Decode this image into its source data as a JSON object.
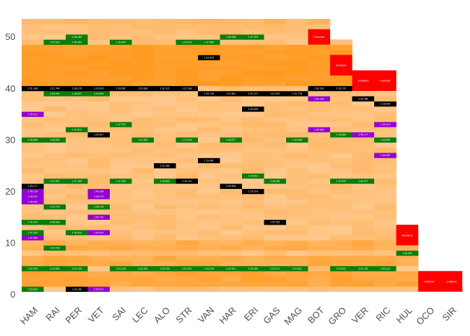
{
  "chart_data": {
    "type": "heatmap",
    "title": "",
    "xlabel": "",
    "ylabel": "",
    "categories": [
      "HAM",
      "RAI",
      "PER",
      "VET",
      "SAI",
      "LEC",
      "ALO",
      "STR",
      "VAN",
      "HAR",
      "ERI",
      "GAS",
      "MAG",
      "BOT",
      "GRO",
      "VER",
      "RIC",
      "HUL",
      "OCO",
      "SIR"
    ],
    "yticks": [
      0,
      10,
      20,
      30,
      40,
      50
    ],
    "ylim": [
      -0.5,
      53.5
    ],
    "laps_completed": [
      53,
      53,
      53,
      53,
      53,
      53,
      53,
      53,
      53,
      53,
      53,
      53,
      53,
      53,
      49,
      43,
      43,
      12,
      1,
      1
    ],
    "colors": {
      "fastest_lap": "#0a7d0a",
      "personal_best": "#9400d3",
      "pit_lap": "#000000",
      "event": "#ff0000",
      "heat_low": "#ffd3a6",
      "heat_high": "#ff9a1f",
      "missing": "#ffffff"
    },
    "pit_laps": [
      {
        "driver": "HAM",
        "lap": 40,
        "label": "1:21.339"
      },
      {
        "driver": "HAM",
        "lap": 21,
        "label": "1:25.177"
      },
      {
        "driver": "RAI",
        "lap": 40,
        "label": "1:21.749"
      },
      {
        "driver": "PER",
        "lap": 40,
        "label": "1:26.179"
      },
      {
        "driver": "PER",
        "lap": 1,
        "label": "1:26.180"
      },
      {
        "driver": "VET",
        "lap": 40,
        "label": "1:23.823"
      },
      {
        "driver": "VET",
        "lap": 31,
        "label": "1:25.927"
      },
      {
        "driver": "SAI",
        "lap": 40,
        "label": "1:20.567"
      },
      {
        "driver": "LEC",
        "lap": 40,
        "label": "1:22.830"
      },
      {
        "driver": "ALO",
        "lap": 40,
        "label": "1:21.371"
      },
      {
        "driver": "ALO",
        "lap": 25,
        "label": "1:21.051"
      },
      {
        "driver": "STR",
        "lap": 40,
        "label": "1:21.236"
      },
      {
        "driver": "STR",
        "lap": 22,
        "label": "1:18.721"
      },
      {
        "driver": "VAN",
        "lap": 46,
        "label": "1:20.976"
      },
      {
        "driver": "VAN",
        "lap": 26,
        "label": "1:20.987"
      },
      {
        "driver": "VAN",
        "lap": 39,
        "label": "1:20.749"
      },
      {
        "driver": "HAR",
        "lap": 39,
        "label": "1:21.861"
      },
      {
        "driver": "HAR",
        "lap": 21,
        "label": "1:20.606"
      },
      {
        "driver": "ERI",
        "lap": 39,
        "label": "1:21.272"
      },
      {
        "driver": "ERI",
        "lap": 36,
        "label": "1:22.620"
      },
      {
        "driver": "GAS",
        "lap": 39,
        "label": "1:21.257"
      },
      {
        "driver": "GAS",
        "lap": 14,
        "label": "1:20.752"
      },
      {
        "driver": "MAG",
        "lap": 39,
        "label": "1:21.776"
      },
      {
        "driver": "BOT",
        "lap": 40,
        "label": "1:20.192"
      },
      {
        "driver": "GRO",
        "lap": 40,
        "label": "1:22.737"
      },
      {
        "driver": "VER",
        "lap": 38,
        "label": "1:16.785"
      },
      {
        "driver": "RIC",
        "lap": 37,
        "label": "1:18.929"
      },
      {
        "driver": "ERI",
        "lap": 20,
        "label": "1:25.378"
      }
    ],
    "fastest_laps": [
      {
        "driver": "HAM",
        "lap": 1,
        "label": "2:20.823"
      },
      {
        "driver": "HAM",
        "lap": 14,
        "label": "1:41.974"
      },
      {
        "driver": "HAM",
        "lap": 5,
        "label": "2:22.000"
      },
      {
        "driver": "HAM",
        "lap": 12,
        "label": "1:47.002"
      },
      {
        "driver": "HAM",
        "lap": 30,
        "label": "1:46.650"
      },
      {
        "driver": "RAI",
        "lap": 49,
        "label": "1:40.523"
      },
      {
        "driver": "RAI",
        "lap": 39,
        "label": "1:46.690"
      },
      {
        "driver": "RAI",
        "lap": 30,
        "label": "1:46.900"
      },
      {
        "driver": "RAI",
        "lap": 22,
        "label": "1:47.252"
      },
      {
        "driver": "RAI",
        "lap": 17,
        "label": "1:41.774"
      },
      {
        "driver": "RAI",
        "lap": 14,
        "label": "1:46.528"
      },
      {
        "driver": "RAI",
        "lap": 9,
        "label": "1:40.728"
      },
      {
        "driver": "RAI",
        "lap": 5,
        "label": "2:23.806"
      },
      {
        "driver": "PER",
        "lap": 50,
        "label": "1:46.280"
      },
      {
        "driver": "PER",
        "lap": 49,
        "label": "1:46.424"
      },
      {
        "driver": "PER",
        "lap": 39,
        "label": "1:40.827"
      },
      {
        "driver": "PER",
        "lap": 32,
        "label": "1:47.633"
      },
      {
        "driver": "PER",
        "lap": 22,
        "label": "1:47.455"
      },
      {
        "driver": "PER",
        "lap": 12,
        "label": "1:46.916"
      },
      {
        "driver": "PER",
        "lap": 5,
        "label": "2:23.439"
      },
      {
        "driver": "VET",
        "lap": 39,
        "label": "1:40.500"
      },
      {
        "driver": "VET",
        "lap": 17,
        "label": "1:46.476"
      },
      {
        "driver": "SAI",
        "lap": 49,
        "label": "1:40.803"
      },
      {
        "driver": "SAI",
        "lap": 33,
        "label": "1:47.222"
      },
      {
        "driver": "SAI",
        "lap": 22,
        "label": "1:47.660"
      },
      {
        "driver": "SAI",
        "lap": 5,
        "label": "2:22.445"
      },
      {
        "driver": "LEC",
        "lap": 30,
        "label": "1:47.463"
      },
      {
        "driver": "LEC",
        "lap": 5,
        "label": "2:22.820"
      },
      {
        "driver": "ALO",
        "lap": 22,
        "label": "1:40.822"
      },
      {
        "driver": "ALO",
        "lap": 5,
        "label": "2:32.001"
      },
      {
        "driver": "STR",
        "lap": 49,
        "label": "1:40.910"
      },
      {
        "driver": "STR",
        "lap": 30,
        "label": "1:47.816"
      },
      {
        "driver": "STR",
        "lap": 5,
        "label": "2:32.001"
      },
      {
        "driver": "VAN",
        "lap": 49,
        "label": "1:47.586"
      },
      {
        "driver": "VAN",
        "lap": 5,
        "label": "2:33.749"
      },
      {
        "driver": "HAR",
        "lap": 50,
        "label": "1:46.288"
      },
      {
        "driver": "HAR",
        "lap": 39,
        "label": "1:46.994"
      },
      {
        "driver": "HAR",
        "lap": 30,
        "label": "1:40.877"
      },
      {
        "driver": "HAR",
        "lap": 5,
        "label": "2:32.621"
      },
      {
        "driver": "ERI",
        "lap": 50,
        "label": "1:47.323"
      },
      {
        "driver": "ERI",
        "lap": 23,
        "label": "1:40.510"
      },
      {
        "driver": "ERI",
        "lap": 5,
        "label": "2:35.655"
      },
      {
        "driver": "GAS",
        "lap": 39,
        "label": "1:46.603"
      },
      {
        "driver": "GAS",
        "lap": 22,
        "label": "1:46.450"
      },
      {
        "driver": "GAS",
        "lap": 5,
        "label": "2:33.871"
      },
      {
        "driver": "MAG",
        "lap": 30,
        "label": "1:45.068"
      },
      {
        "driver": "MAG",
        "lap": 5,
        "label": "2:33.621"
      },
      {
        "driver": "GRO",
        "lap": 31,
        "label": "1:46.689"
      },
      {
        "driver": "GRO",
        "lap": 22,
        "label": "1:47.547"
      },
      {
        "driver": "GRO",
        "lap": 5,
        "label": "2:33.847"
      },
      {
        "driver": "VER",
        "lap": 22,
        "label": "1:48.227"
      },
      {
        "driver": "VER",
        "lap": 5,
        "label": "2:33.142"
      },
      {
        "driver": "RIC",
        "lap": 30,
        "label": "1:46.855"
      },
      {
        "driver": "RIC",
        "lap": 5,
        "label": "2:32.210"
      },
      {
        "driver": "HUL",
        "lap": 8,
        "label": "1:45.523"
      }
    ],
    "personal_bests": [
      {
        "driver": "HAM",
        "lap": 35,
        "label": "1:45.412"
      },
      {
        "driver": "HAM",
        "lap": 20,
        "label": "1:46.139"
      },
      {
        "driver": "HAM",
        "lap": 19,
        "label": "1:46.311"
      },
      {
        "driver": "HAM",
        "lap": 18,
        "label": "1:46.587"
      },
      {
        "driver": "HAM",
        "lap": 11,
        "label": "1:47.809"
      },
      {
        "driver": "VET",
        "lap": 20,
        "label": "1:46.328"
      },
      {
        "driver": "VET",
        "lap": 19,
        "label": "1:46.075"
      },
      {
        "driver": "VET",
        "lap": 15,
        "label": "1:40.722"
      },
      {
        "driver": "VET",
        "lap": 12,
        "label": "1:46.025"
      },
      {
        "driver": "VET",
        "lap": 1,
        "label": "2:20.071"
      },
      {
        "driver": "BOT",
        "lap": 38,
        "label": "1:45.185"
      },
      {
        "driver": "BOT",
        "lap": 32,
        "label": "1:45.606"
      },
      {
        "driver": "VER",
        "lap": 31,
        "label": "1:45.177"
      },
      {
        "driver": "RIC",
        "lap": 33,
        "label": "1:45.419"
      },
      {
        "driver": "RIC",
        "lap": 27,
        "label": "1:46.883"
      }
    ],
    "events": [
      {
        "driver": "BOT",
        "lap": 49,
        "label": "Puncture",
        "span": 3
      },
      {
        "driver": "GRO",
        "lap": 43,
        "label": "Accident",
        "span": 4
      },
      {
        "driver": "VER",
        "lap": 40,
        "label": "Collision",
        "span": 4
      },
      {
        "driver": "RIC",
        "lap": 40,
        "label": "Collision",
        "span": 4
      },
      {
        "driver": "HUL",
        "lap": 10,
        "label": "Accident",
        "span": 4
      },
      {
        "driver": "OCO",
        "lap": 1,
        "label": "Collision",
        "span": 4
      },
      {
        "driver": "SIR",
        "lap": 1,
        "label": "Collision",
        "span": 4
      }
    ]
  }
}
